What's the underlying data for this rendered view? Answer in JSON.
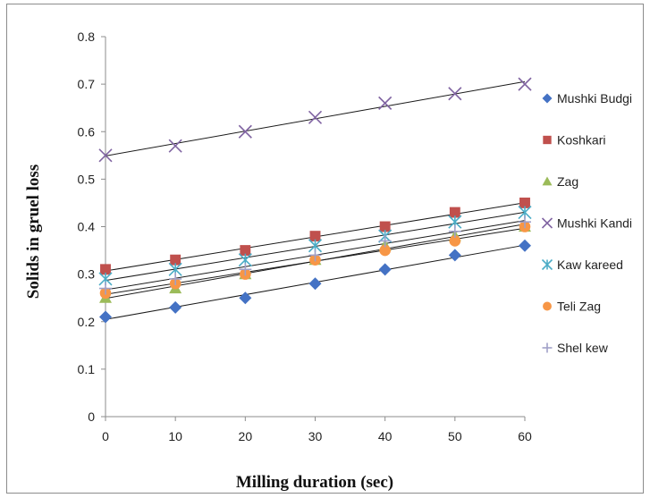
{
  "chart_data": {
    "type": "scatter",
    "xlabel": "Milling duration (sec)",
    "ylabel": "Solids in gruel loss",
    "xlim": [
      0,
      60
    ],
    "ylim": [
      0,
      0.8
    ],
    "x_ticks": [
      "0",
      "10",
      "20",
      "30",
      "40",
      "50",
      "60"
    ],
    "y_ticks": [
      "0",
      "0.1",
      "0.2",
      "0.3",
      "0.4",
      "0.5",
      "0.6",
      "0.7",
      "0.8"
    ],
    "x": [
      0,
      10,
      20,
      30,
      40,
      50,
      60
    ],
    "grid": false,
    "legend_position": "right",
    "trendlines": true,
    "series": [
      {
        "name": "Mushki Budgi",
        "marker": "diamond",
        "color": "#4472c4",
        "values": [
          0.21,
          0.23,
          0.25,
          0.28,
          0.31,
          0.34,
          0.36
        ]
      },
      {
        "name": "Koshkari",
        "marker": "square",
        "color": "#c0504d",
        "values": [
          0.31,
          0.33,
          0.35,
          0.38,
          0.4,
          0.43,
          0.45
        ]
      },
      {
        "name": "Zag",
        "marker": "triangle",
        "color": "#9bbb59",
        "values": [
          0.25,
          0.27,
          0.3,
          0.33,
          0.36,
          0.38,
          0.4
        ]
      },
      {
        "name": "Mushki Kandi",
        "marker": "x",
        "color": "#8064a2",
        "values": [
          0.55,
          0.57,
          0.6,
          0.63,
          0.66,
          0.68,
          0.7
        ]
      },
      {
        "name": "Kaw kareed",
        "marker": "star",
        "color": "#4bacc6",
        "values": [
          0.29,
          0.31,
          0.33,
          0.36,
          0.38,
          0.41,
          0.43
        ]
      },
      {
        "name": "Teli Zag",
        "marker": "circle",
        "color": "#f79646",
        "values": [
          0.26,
          0.28,
          0.3,
          0.33,
          0.35,
          0.37,
          0.4
        ]
      },
      {
        "name": "Shel kew",
        "marker": "plus",
        "color": "#a0a0c8",
        "values": [
          0.27,
          0.29,
          0.31,
          0.34,
          0.37,
          0.39,
          0.41
        ]
      }
    ]
  }
}
